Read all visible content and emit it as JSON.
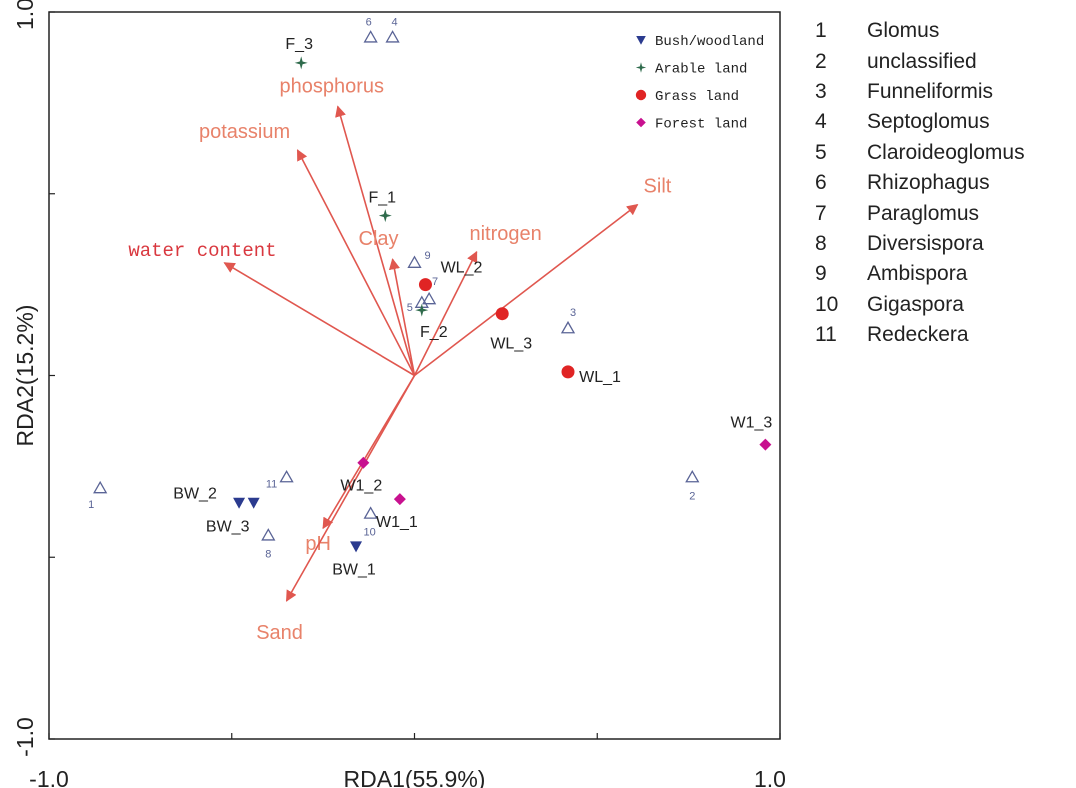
{
  "chart_data": {
    "type": "scatter",
    "subtype": "RDA biplot",
    "xlabel": "RDA1(55.9%)",
    "ylabel": "RDA2(15.2%)",
    "xlim": [
      -1.0,
      1.0
    ],
    "ylim": [
      -1.0,
      1.0
    ],
    "x_tick_labels": [
      "-1.0",
      "1.0"
    ],
    "y_tick_labels": [
      "1.0",
      "-1.0"
    ],
    "grid": false,
    "origin": [
      0.0,
      0.0
    ],
    "environmental_vectors": [
      {
        "name": "phosphorus",
        "x": -0.21,
        "y": 0.74,
        "color": "#e8826a"
      },
      {
        "name": "potassium",
        "x": -0.32,
        "y": 0.62,
        "color": "#e8826a"
      },
      {
        "name": "water content",
        "x": -0.52,
        "y": 0.31,
        "color": "#d9383f"
      },
      {
        "name": "Clay",
        "x": -0.06,
        "y": 0.32,
        "color": "#e8826a"
      },
      {
        "name": "nitrogen",
        "x": 0.17,
        "y": 0.34,
        "color": "#e8826a"
      },
      {
        "name": "Silt",
        "x": 0.61,
        "y": 0.47,
        "color": "#e8826a"
      },
      {
        "name": "pH",
        "x": -0.25,
        "y": -0.42,
        "color": "#e8826a"
      },
      {
        "name": "Sand",
        "x": -0.35,
        "y": -0.62,
        "color": "#e8826a"
      }
    ],
    "series": [
      {
        "name": "Bush/woodland",
        "marker": "triangle-down",
        "color": "#2b3b8f",
        "points": [
          {
            "label": "BW_2",
            "x": -0.48,
            "y": -0.35
          },
          {
            "label": "BW_3",
            "x": -0.44,
            "y": -0.35
          },
          {
            "label": "BW_1",
            "x": -0.16,
            "y": -0.47
          }
        ]
      },
      {
        "name": "Arable land",
        "marker": "star",
        "color": "#2f6b4c",
        "points": [
          {
            "label": "F_3",
            "x": -0.31,
            "y": 0.86
          },
          {
            "label": "F_1",
            "x": -0.08,
            "y": 0.44
          },
          {
            "label": "F_2",
            "x": 0.02,
            "y": 0.18
          }
        ]
      },
      {
        "name": "Grass land",
        "marker": "circle",
        "color": "#e02424",
        "points": [
          {
            "label": "WL_2",
            "x": 0.03,
            "y": 0.25
          },
          {
            "label": "WL_3",
            "x": 0.24,
            "y": 0.17
          },
          {
            "label": "WL_1",
            "x": 0.42,
            "y": 0.01
          }
        ]
      },
      {
        "name": "Forest land",
        "marker": "diamond",
        "color": "#c8118f",
        "points": [
          {
            "label": "W1_2",
            "x": -0.14,
            "y": -0.24
          },
          {
            "label": "W1_1",
            "x": -0.04,
            "y": -0.34
          },
          {
            "label": "W1_3",
            "x": 0.96,
            "y": -0.19
          }
        ]
      }
    ],
    "species_points": [
      {
        "id": "1",
        "x": -0.86,
        "y": -0.31
      },
      {
        "id": "2",
        "x": 0.76,
        "y": -0.28
      },
      {
        "id": "3",
        "x": 0.42,
        "y": 0.13
      },
      {
        "id": "4",
        "x": -0.06,
        "y": 0.93
      },
      {
        "id": "5",
        "x": 0.02,
        "y": 0.2
      },
      {
        "id": "6",
        "x": -0.12,
        "y": 0.93
      },
      {
        "id": "7",
        "x": 0.04,
        "y": 0.21
      },
      {
        "id": "8",
        "x": -0.4,
        "y": -0.44
      },
      {
        "id": "9",
        "x": 0.0,
        "y": 0.31
      },
      {
        "id": "10",
        "x": -0.12,
        "y": -0.38
      },
      {
        "id": "11",
        "x": -0.35,
        "y": -0.28
      }
    ],
    "species_legend": [
      {
        "id": "1",
        "name": "Glomus"
      },
      {
        "id": "2",
        "name": "unclassified"
      },
      {
        "id": "3",
        "name": "Funneliformis"
      },
      {
        "id": "4",
        "name": "Septoglomus"
      },
      {
        "id": "5",
        "name": "Claroideoglomus"
      },
      {
        "id": "6",
        "name": "Rhizophagus"
      },
      {
        "id": "7",
        "name": "Paraglomus"
      },
      {
        "id": "8",
        "name": "Diversispora"
      },
      {
        "id": "9",
        "name": "Ambispora"
      },
      {
        "id": "10",
        "name": "Gigaspora"
      },
      {
        "id": "11",
        "name": "Redeckera"
      }
    ],
    "legend_placement": "top-right inside plot"
  }
}
